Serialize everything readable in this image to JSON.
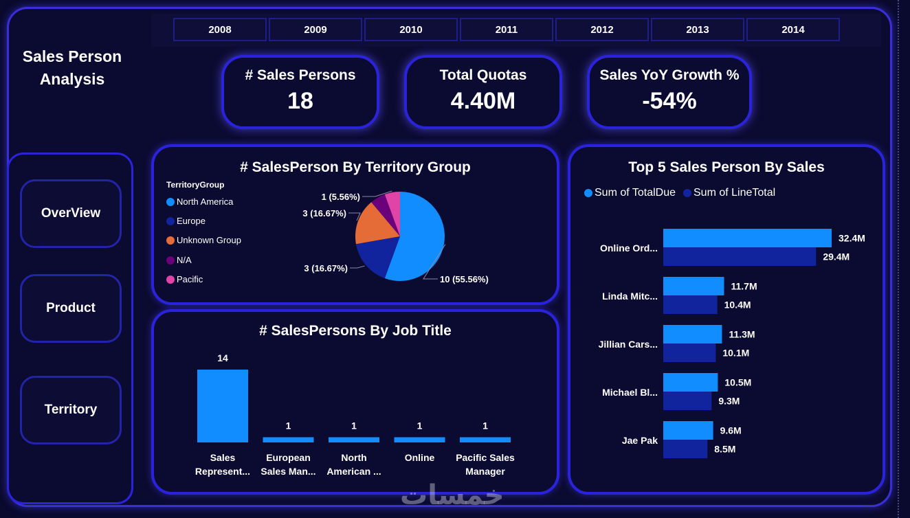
{
  "app_title": "Sales Person Analysis",
  "years": [
    "2008",
    "2009",
    "2010",
    "2011",
    "2012",
    "2013",
    "2014"
  ],
  "kpis": [
    {
      "label": "# Sales Persons",
      "value": "18"
    },
    {
      "label": "Total Quotas",
      "value": "4.40M"
    },
    {
      "label": "Sales YoY Growth %",
      "value": "-54%"
    }
  ],
  "nav": [
    "OverView",
    "Product",
    "Territory"
  ],
  "watermark": "خمسات",
  "colors": {
    "accent": "#2b22dc",
    "bg": "#0b0b31",
    "bar_light": "#118dff",
    "bar_dark": "#12239e"
  },
  "chart_data": [
    {
      "type": "pie",
      "title": "# SalesPerson By Territory Group",
      "legend_title": "TerritoryGroup",
      "legend_position": "left",
      "slices": [
        {
          "name": "North America",
          "value": 10,
          "label": "10 (55.56%)",
          "color": "#118dff"
        },
        {
          "name": "Europe",
          "value": 3,
          "label": "3 (16.67%)",
          "color": "#12239e"
        },
        {
          "name": "Unknown Group",
          "value": 3,
          "label": "3 (16.67%)",
          "color": "#e66c37"
        },
        {
          "name": "N/A",
          "value": 1,
          "label": "",
          "color": "#6b007b"
        },
        {
          "name": "Pacific",
          "value": 1,
          "label": "1 (5.56%)",
          "color": "#e044a7"
        }
      ]
    },
    {
      "type": "bar",
      "title": "# SalesPersons By Job Title",
      "categories": [
        [
          "Sales",
          "Represent..."
        ],
        [
          "European",
          "Sales Man..."
        ],
        [
          "North",
          "American ..."
        ],
        [
          "Online"
        ],
        [
          "Pacific Sales",
          "Manager"
        ]
      ],
      "values": [
        14,
        1,
        1,
        1,
        1
      ],
      "ylim": [
        0,
        14
      ]
    },
    {
      "type": "bar",
      "orientation": "horizontal",
      "title": "Top 5 Sales Person By Sales",
      "legend_position": "top-left",
      "categories": [
        "Online Ord...",
        "Linda Mitc...",
        "Jillian Cars...",
        "Michael Bl...",
        "Jae Pak"
      ],
      "series": [
        {
          "name": "Sum of TotalDue",
          "values": [
            32.4,
            11.7,
            11.3,
            10.5,
            9.6
          ],
          "labels": [
            "32.4M",
            "11.7M",
            "11.3M",
            "10.5M",
            "9.6M"
          ],
          "color": "#118dff"
        },
        {
          "name": "Sum of LineTotal",
          "values": [
            29.4,
            10.4,
            10.1,
            9.3,
            8.5
          ],
          "labels": [
            "29.4M",
            "10.4M",
            "10.1M",
            "9.3M",
            "8.5M"
          ],
          "color": "#12239e"
        }
      ],
      "xlim": [
        0,
        32.4
      ]
    }
  ]
}
